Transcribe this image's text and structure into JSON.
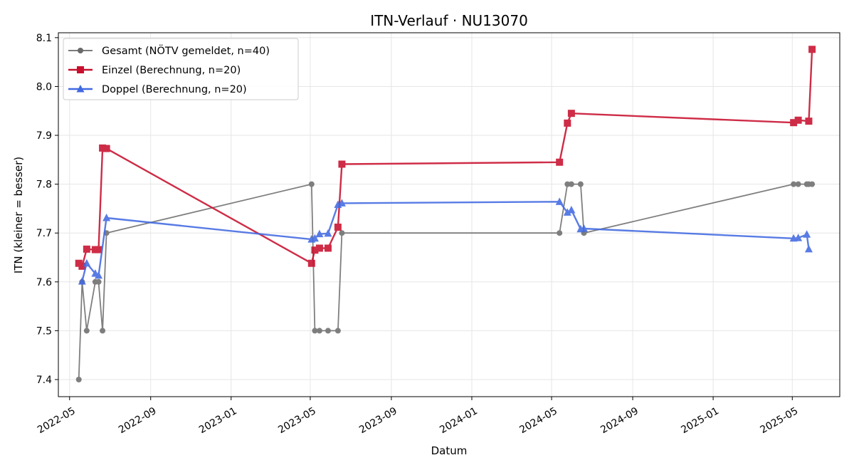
{
  "chart_data": {
    "type": "line",
    "title": "ITN-Verlauf · NU13070",
    "xlabel": "Datum",
    "ylabel": "ITN  (kleiner = besser)",
    "x_ticks": [
      "2022-05",
      "2022-09",
      "2023-01",
      "2023-05",
      "2023-09",
      "2024-01",
      "2024-05",
      "2024-09",
      "2025-01",
      "2025-05"
    ],
    "y_ticks": [
      "7.4",
      "7.5",
      "7.6",
      "7.7",
      "7.8",
      "7.9",
      "8.0",
      "8.1"
    ],
    "xlim": [
      "2022-04-14",
      "2025-07-12"
    ],
    "ylim": [
      7.365,
      8.11
    ],
    "grid": true,
    "legend_position": "top-left",
    "series": [
      {
        "name": "Gesamt (NÖTV gemeldet, n=40)",
        "color": "#696969",
        "marker": "circle",
        "points": [
          [
            "2022-05-15",
            7.4
          ],
          [
            "2022-05-20",
            7.6
          ],
          [
            "2022-05-27",
            7.5
          ],
          [
            "2022-06-09",
            7.6
          ],
          [
            "2022-06-14",
            7.6
          ],
          [
            "2022-06-20",
            7.5
          ],
          [
            "2022-06-26",
            7.7
          ],
          [
            "2023-05-03",
            7.8
          ],
          [
            "2023-05-08",
            7.5
          ],
          [
            "2023-05-15",
            7.5
          ],
          [
            "2023-05-28",
            7.5
          ],
          [
            "2023-06-12",
            7.5
          ],
          [
            "2023-06-18",
            7.7
          ],
          [
            "2024-05-13",
            7.7
          ],
          [
            "2024-05-25",
            7.8
          ],
          [
            "2024-05-31",
            7.8
          ],
          [
            "2024-06-14",
            7.8
          ],
          [
            "2024-06-19",
            7.7
          ],
          [
            "2025-05-03",
            7.8
          ],
          [
            "2025-05-10",
            7.8
          ],
          [
            "2025-05-23",
            7.8
          ],
          [
            "2025-05-26",
            7.8
          ],
          [
            "2025-05-31",
            7.8
          ]
        ]
      },
      {
        "name": "Einzel (Berechnung, n=20)",
        "color": "#c8102e",
        "marker": "square",
        "points": [
          [
            "2022-05-15",
            7.638
          ],
          [
            "2022-05-20",
            7.632
          ],
          [
            "2022-05-27",
            7.667
          ],
          [
            "2022-06-09",
            7.666
          ],
          [
            "2022-06-14",
            7.666
          ],
          [
            "2022-06-20",
            7.874
          ],
          [
            "2022-06-26",
            7.873
          ],
          [
            "2023-05-03",
            7.638
          ],
          [
            "2023-05-08",
            7.665
          ],
          [
            "2023-05-15",
            7.669
          ],
          [
            "2023-05-28",
            7.669
          ],
          [
            "2023-06-12",
            7.712
          ],
          [
            "2023-06-18",
            7.841
          ],
          [
            "2024-05-13",
            7.845
          ],
          [
            "2024-05-25",
            7.925
          ],
          [
            "2024-05-31",
            7.945
          ],
          [
            "2025-05-03",
            7.926
          ],
          [
            "2025-05-10",
            7.931
          ],
          [
            "2025-05-26",
            7.929
          ],
          [
            "2025-05-31",
            8.076
          ]
        ]
      },
      {
        "name": "Doppel (Berechnung, n=20)",
        "color": "#4169e1",
        "marker": "triangle",
        "points": [
          [
            "2022-05-20",
            7.601
          ],
          [
            "2022-05-27",
            7.638
          ],
          [
            "2022-06-09",
            7.617
          ],
          [
            "2022-06-14",
            7.613
          ],
          [
            "2022-06-26",
            7.731
          ],
          [
            "2023-05-03",
            7.687
          ],
          [
            "2023-05-08",
            7.689
          ],
          [
            "2023-05-15",
            7.698
          ],
          [
            "2023-05-28",
            7.699
          ],
          [
            "2023-06-12",
            7.758
          ],
          [
            "2023-06-18",
            7.761
          ],
          [
            "2024-05-13",
            7.764
          ],
          [
            "2024-05-25",
            7.742
          ],
          [
            "2024-05-31",
            7.747
          ],
          [
            "2024-06-14",
            7.708
          ],
          [
            "2024-06-19",
            7.709
          ],
          [
            "2025-05-03",
            7.689
          ],
          [
            "2025-05-10",
            7.69
          ],
          [
            "2025-05-23",
            7.697
          ],
          [
            "2025-05-26",
            7.667
          ]
        ]
      }
    ]
  }
}
